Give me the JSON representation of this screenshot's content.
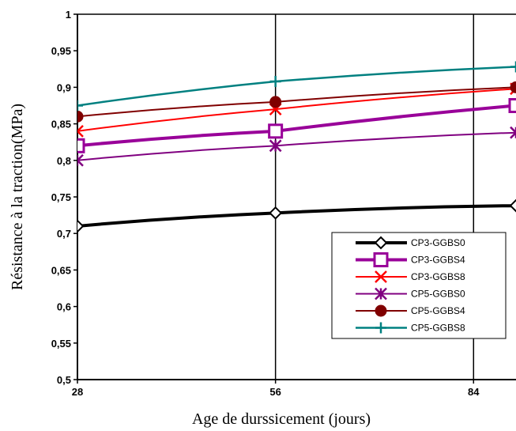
{
  "chart_data": {
    "type": "line",
    "title": "",
    "xlabel": "Age de durssicement (jours)",
    "ylabel": "Résistance à la traction(MPa)",
    "x": [
      28,
      56,
      84
    ],
    "xlim": [
      28,
      90
    ],
    "ylim": [
      0.5,
      1
    ],
    "x_ticks": [
      "28",
      "56",
      "84"
    ],
    "y_ticks": [
      "0,5",
      "0,55",
      "0,6",
      "0,65",
      "0,7",
      "0,75",
      "0,8",
      "0,85",
      "0,9",
      "0,95",
      "1"
    ],
    "grid": "vertical",
    "legend_position": "bottom-right",
    "series": [
      {
        "name": "CP3-GGBS0",
        "x": [
          28,
          56,
          90
        ],
        "values": [
          0.71,
          0.728,
          0.738
        ],
        "color": "#000000",
        "marker": "diamond"
      },
      {
        "name": "CP3-GGBS4",
        "x": [
          28,
          56,
          90
        ],
        "values": [
          0.82,
          0.84,
          0.875
        ],
        "color": "#990099",
        "marker": "square"
      },
      {
        "name": "CP3-GGBS8",
        "x": [
          28,
          56,
          90
        ],
        "values": [
          0.84,
          0.87,
          0.898
        ],
        "color": "#ff0000",
        "marker": "x"
      },
      {
        "name": "CP5-GGBS0",
        "x": [
          28,
          56,
          90
        ],
        "values": [
          0.8,
          0.82,
          0.838
        ],
        "color": "#800080",
        "marker": "asterisk"
      },
      {
        "name": "CP5-GGBS4",
        "x": [
          28,
          56,
          90
        ],
        "values": [
          0.86,
          0.88,
          0.9
        ],
        "color": "#800000",
        "marker": "circle"
      },
      {
        "name": "CP5-GGBS8",
        "x": [
          28,
          56,
          90
        ],
        "values": [
          0.875,
          0.908,
          0.928
        ],
        "color": "#008080",
        "marker": "plus"
      }
    ]
  }
}
